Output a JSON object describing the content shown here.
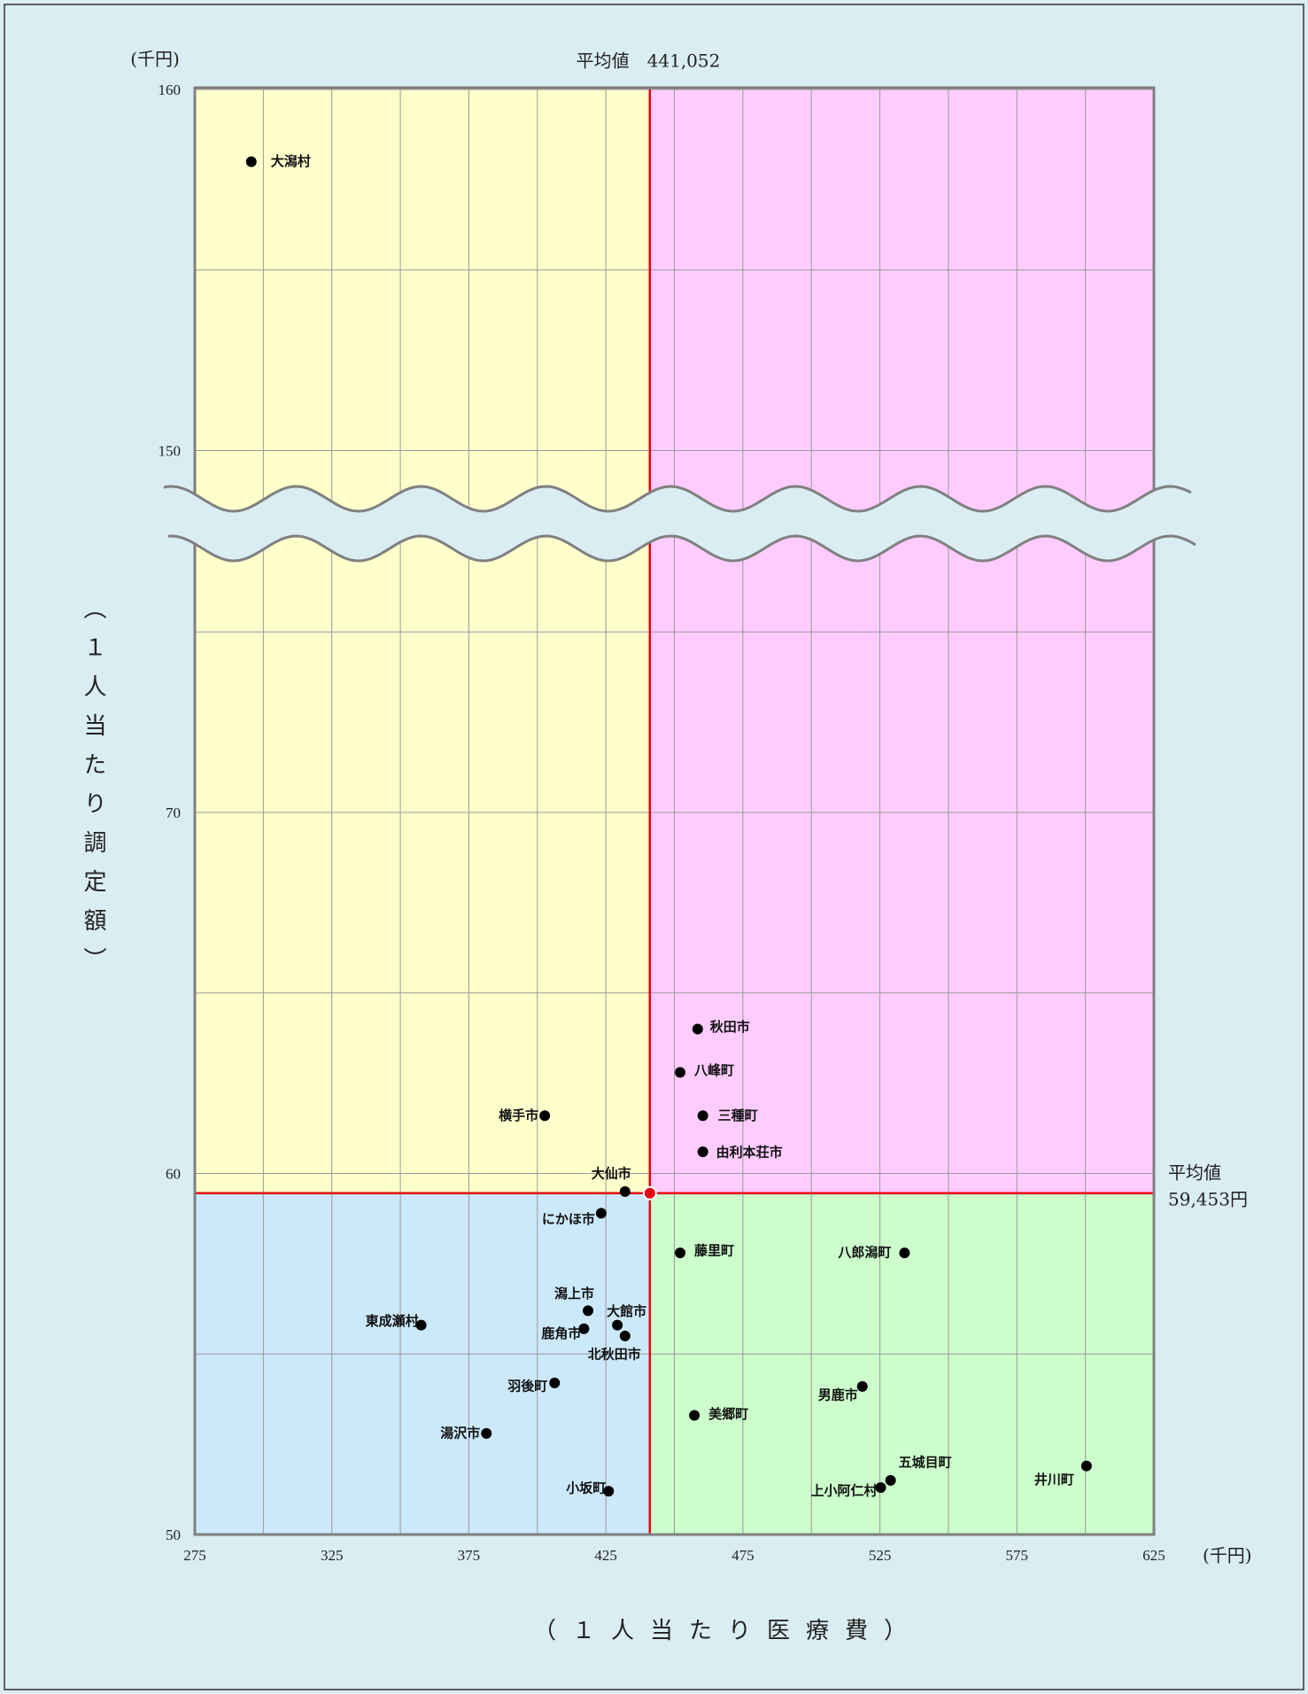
{
  "chart_data": {
    "type": "scatter",
    "y_unit": "(千円)",
    "x_unit": "(千円)",
    "x_label": "（１人当たり医療費）",
    "y_label": "（１人当たり調定額）",
    "xlim": [
      275,
      625
    ],
    "xticks": [
      275,
      325,
      375,
      425,
      475,
      525,
      575,
      625
    ],
    "xminor": [
      300,
      350,
      400,
      450,
      500,
      550,
      600
    ],
    "ylim": [
      50,
      160
    ],
    "ybreak": [
      77,
      149
    ],
    "yticks": [
      50,
      60,
      70,
      150,
      160
    ],
    "yminor": [
      55,
      65,
      75,
      155
    ],
    "grid": true,
    "quadrant_colors": {
      "top_left": "#ffffcc",
      "top_right": "#ffccff",
      "bottom_left": "#cce9fb",
      "bottom_right": "#ccffcc"
    },
    "mean": {
      "x": 441.052,
      "y": 59.453,
      "x_label": "平均値　441,052",
      "y_label": [
        "平均値",
        "59,453円"
      ],
      "color": "#e60012"
    },
    "color": "#000000",
    "points": [
      {
        "name": "大潟村",
        "x": 295.6,
        "y": 158.0
      },
      {
        "name": "秋田市",
        "x": 458.5,
        "y": 64.0
      },
      {
        "name": "八峰町",
        "x": 452.1,
        "y": 62.8
      },
      {
        "name": "横手市",
        "x": 402.7,
        "y": 61.6
      },
      {
        "name": "三種町",
        "x": 460.4,
        "y": 61.6
      },
      {
        "name": "由利本荘市",
        "x": 460.4,
        "y": 60.6
      },
      {
        "name": "大仙市",
        "x": 432.0,
        "y": 59.5
      },
      {
        "name": "にかほ市",
        "x": 423.3,
        "y": 58.9
      },
      {
        "name": "藤里町",
        "x": 452.1,
        "y": 57.8
      },
      {
        "name": "八郎潟町",
        "x": 534.0,
        "y": 57.8
      },
      {
        "name": "潟上市",
        "x": 418.5,
        "y": 56.2
      },
      {
        "name": "大館市",
        "x": 429.2,
        "y": 55.8
      },
      {
        "name": "東成瀬村",
        "x": 357.6,
        "y": 55.8
      },
      {
        "name": "鹿角市",
        "x": 417.0,
        "y": 55.7
      },
      {
        "name": "北秋田市",
        "x": 432.0,
        "y": 55.5
      },
      {
        "name": "羽後町",
        "x": 406.3,
        "y": 54.2
      },
      {
        "name": "男鹿市",
        "x": 518.6,
        "y": 54.1
      },
      {
        "name": "美郷町",
        "x": 457.3,
        "y": 53.3
      },
      {
        "name": "湯沢市",
        "x": 381.4,
        "y": 52.8
      },
      {
        "name": "井川町",
        "x": 600.4,
        "y": 51.9
      },
      {
        "name": "五城目町",
        "x": 528.9,
        "y": 51.5
      },
      {
        "name": "上小阿仁村",
        "x": 525.3,
        "y": 51.3
      },
      {
        "name": "小坂町",
        "x": 426.0,
        "y": 51.2
      }
    ]
  }
}
